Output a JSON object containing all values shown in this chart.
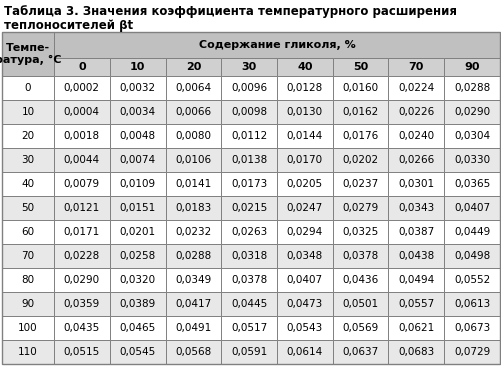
{
  "title_line1": "Таблица 3. Значения коэффициента температурного расширения",
  "title_line2": "теплоносителей βt",
  "col_header_main": "Содержание гликоля, %",
  "row_header_line1": "Темпе-",
  "row_header_line2": "ратура, °C",
  "col_subheaders": [
    "0",
    "10",
    "20",
    "30",
    "40",
    "50",
    "70",
    "90"
  ],
  "row_labels": [
    "0",
    "10",
    "20",
    "30",
    "40",
    "50",
    "60",
    "70",
    "80",
    "90",
    "100",
    "110"
  ],
  "table_data": [
    [
      "0,0002",
      "0,0032",
      "0,0064",
      "0,0096",
      "0,0128",
      "0,0160",
      "0,0224",
      "0,0288"
    ],
    [
      "0,0004",
      "0,0034",
      "0,0066",
      "0,0098",
      "0,0130",
      "0,0162",
      "0,0226",
      "0,0290"
    ],
    [
      "0,0018",
      "0,0048",
      "0,0080",
      "0,0112",
      "0,0144",
      "0,0176",
      "0,0240",
      "0,0304"
    ],
    [
      "0,0044",
      "0,0074",
      "0,0106",
      "0,0138",
      "0,0170",
      "0,0202",
      "0,0266",
      "0,0330"
    ],
    [
      "0,0079",
      "0,0109",
      "0,0141",
      "0,0173",
      "0,0205",
      "0,0237",
      "0,0301",
      "0,0365"
    ],
    [
      "0,0121",
      "0,0151",
      "0,0183",
      "0,0215",
      "0,0247",
      "0,0279",
      "0,0343",
      "0,0407"
    ],
    [
      "0,0171",
      "0,0201",
      "0,0232",
      "0,0263",
      "0,0294",
      "0,0325",
      "0,0387",
      "0,0449"
    ],
    [
      "0,0228",
      "0,0258",
      "0,0288",
      "0,0318",
      "0,0348",
      "0,0378",
      "0,0438",
      "0,0498"
    ],
    [
      "0,0290",
      "0,0320",
      "0,0349",
      "0,0378",
      "0,0407",
      "0,0436",
      "0,0494",
      "0,0552"
    ],
    [
      "0,0359",
      "0,0389",
      "0,0417",
      "0,0445",
      "0,0473",
      "0,0501",
      "0,0557",
      "0,0613"
    ],
    [
      "0,0435",
      "0,0465",
      "0,0491",
      "0,0517",
      "0,0543",
      "0,0569",
      "0,0621",
      "0,0673"
    ],
    [
      "0,0515",
      "0,0545",
      "0,0568",
      "0,0591",
      "0,0614",
      "0,0637",
      "0,0683",
      "0,0729"
    ]
  ],
  "color_header_bg": "#c0c0c0",
  "color_subheader_bg": "#d0d0d0",
  "color_row_even": "#ffffff",
  "color_row_odd": "#e8e8e8",
  "color_border": "#808080",
  "title_fontsize": 8.5,
  "header_fontsize": 8.0,
  "cell_fontsize": 7.5,
  "fig_width": 5.02,
  "fig_height": 3.66,
  "dpi": 100
}
